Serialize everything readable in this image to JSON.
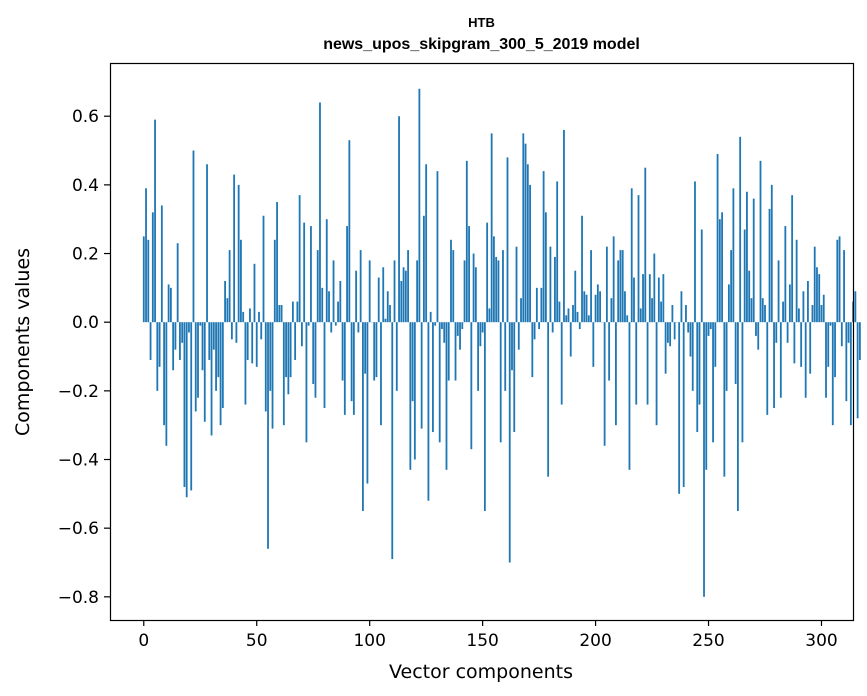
{
  "chart_data": {
    "type": "bar",
    "title": "НТВ",
    "subtitle": "news_upos_skipgram_300_5_2019 model",
    "xlabel": "Vector components",
    "ylabel": "Components values",
    "xlim": [
      -14.95,
      313.95
    ],
    "ylim": [
      -0.8675,
      0.755
    ],
    "xticks": [
      0,
      50,
      100,
      150,
      200,
      250,
      300
    ],
    "xtick_labels": [
      "0",
      "50",
      "100",
      "150",
      "200",
      "250",
      "300"
    ],
    "yticks": [
      -0.8,
      -0.6,
      -0.4,
      -0.2,
      0.0,
      0.2,
      0.4,
      0.6
    ],
    "ytick_labels": [
      "−0.8",
      "−0.6",
      "−0.4",
      "−0.2",
      "0.0",
      "0.2",
      "0.4",
      "0.6"
    ],
    "bar_color": "#1f77b4",
    "grid": false,
    "values": [
      0.25,
      0.39,
      0.24,
      -0.11,
      0.32,
      0.59,
      -0.2,
      -0.13,
      0.34,
      -0.3,
      -0.36,
      0.11,
      0.1,
      -0.14,
      -0.08,
      0.23,
      -0.11,
      -0.06,
      -0.48,
      -0.51,
      -0.03,
      -0.49,
      0.5,
      -0.26,
      -0.22,
      -0.01,
      -0.14,
      -0.29,
      0.46,
      -0.11,
      -0.33,
      -0.08,
      -0.2,
      -0.16,
      -0.3,
      -0.25,
      0.12,
      0.07,
      0.21,
      -0.05,
      0.43,
      -0.06,
      0.4,
      0.24,
      0.03,
      -0.24,
      -0.11,
      0.04,
      -0.12,
      0.17,
      -0.13,
      0.03,
      -0.05,
      0.31,
      -0.26,
      -0.66,
      -0.2,
      -0.31,
      0.24,
      0.35,
      0.05,
      0.05,
      -0.3,
      -0.16,
      -0.21,
      -0.16,
      0.06,
      -0.11,
      0.06,
      0.37,
      -0.07,
      0.29,
      -0.35,
      -0.01,
      0.28,
      -0.18,
      -0.22,
      0.21,
      0.64,
      0.1,
      -0.25,
      0.3,
      0.09,
      -0.03,
      0.18,
      -0.01,
      0.06,
      0.12,
      -0.17,
      -0.27,
      0.28,
      0.53,
      -0.23,
      -0.27,
      0.15,
      -0.03,
      0.21,
      -0.55,
      -0.15,
      -0.47,
      0.18,
      0.0,
      -0.17,
      -0.16,
      0.13,
      -0.3,
      0.16,
      0.01,
      0.09,
      0.05,
      -0.69,
      0.18,
      -0.2,
      0.6,
      0.12,
      0.16,
      0.15,
      0.21,
      -0.43,
      -0.23,
      -0.4,
      0.18,
      0.68,
      -0.31,
      0.31,
      0.46,
      -0.52,
      0.03,
      -0.32,
      -0.01,
      0.44,
      -0.35,
      -0.02,
      -0.06,
      -0.43,
      -0.17,
      0.24,
      0.21,
      -0.17,
      -0.04,
      -0.08,
      -0.02,
      0.18,
      0.47,
      0.28,
      -0.37,
      0.2,
      0.16,
      -0.2,
      -0.07,
      -0.03,
      -0.55,
      0.29,
      0.04,
      0.55,
      0.25,
      0.19,
      0.18,
      -0.35,
      0.21,
      -0.2,
      0.48,
      -0.7,
      -0.14,
      -0.32,
      0.22,
      -0.08,
      0.07,
      0.55,
      0.52,
      0.46,
      0.4,
      -0.16,
      -0.05,
      0.1,
      -0.02,
      0.1,
      0.44,
      0.32,
      -0.45,
      0.22,
      -0.03,
      0.19,
      0.41,
      0.06,
      -0.24,
      0.56,
      0.02,
      0.04,
      -0.1,
      0.05,
      0.15,
      0.03,
      -0.02,
      0.31,
      0.09,
      0.08,
      0.02,
      0.21,
      -0.13,
      0.08,
      0.11,
      0.09,
      0.0,
      -0.36,
      0.22,
      -0.17,
      0.07,
      0.25,
      -0.3,
      0.18,
      0.21,
      0.21,
      0.09,
      0.02,
      -0.43,
      0.39,
      0.13,
      -0.24,
      0.37,
      0.04,
      0.14,
      0.45,
      -0.24,
      0.14,
      0.07,
      0.2,
      -0.3,
      0.13,
      0.06,
      0.14,
      -0.15,
      -0.06,
      -0.07,
      0.05,
      -0.05,
      0.0,
      -0.5,
      0.09,
      -0.48,
      0.05,
      -0.03,
      -0.1,
      -0.2,
      0.41,
      -0.32,
      -0.24,
      0.27,
      -0.8,
      -0.43,
      -0.04,
      -0.02,
      -0.35,
      -0.13,
      0.49,
      0.3,
      0.32,
      -0.45,
      -0.2,
      0.11,
      0.21,
      0.39,
      -0.18,
      -0.55,
      0.54,
      -0.35,
      0.27,
      0.38,
      0.15,
      0.07,
      0.36,
      -0.04,
      -0.08,
      0.47,
      0.07,
      0.05,
      -0.27,
      0.33,
      0.4,
      -0.25,
      -0.06,
      0.18,
      -0.22,
      0.06,
      0.28,
      -0.06,
      0.11,
      0.37,
      -0.12,
      0.24,
      0.04,
      -0.13,
      0.09,
      -0.22,
      0.12,
      -0.15,
      0.05,
      0.22,
      0.16,
      0.14,
      0.05,
      0.08,
      -0.22,
      -0.13,
      -0.01,
      -0.3,
      -0.16,
      0.24,
      0.25,
      -0.07,
      0.21,
      -0.23,
      -0.06,
      -0.3,
      0.06,
      0.09,
      -0.28,
      -0.11
    ]
  }
}
